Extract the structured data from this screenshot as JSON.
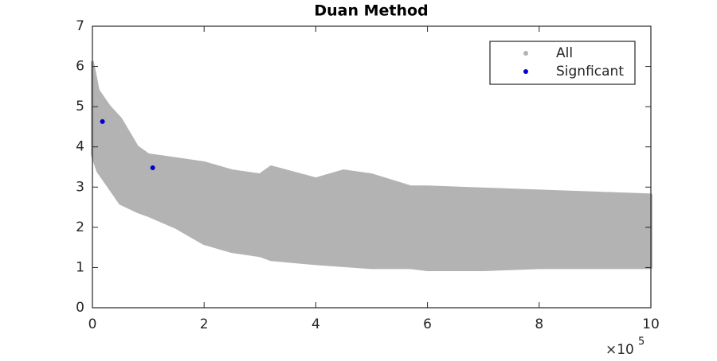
{
  "chart_data": {
    "type": "scatter",
    "title": "Duan Method",
    "xlim": [
      0,
      1000000
    ],
    "ylim": [
      0,
      7
    ],
    "xticks": [
      0,
      {
        "value": 200000,
        "label": "2"
      },
      {
        "value": 400000,
        "label": "4"
      },
      {
        "value": 600000,
        "label": "6"
      },
      {
        "value": 800000,
        "label": "8"
      },
      {
        "value": 1000000,
        "label": "10"
      }
    ],
    "yticks": [
      0,
      1,
      2,
      3,
      4,
      5,
      6,
      7
    ],
    "x_exponent": {
      "base": "×10",
      "power": "5"
    },
    "legend": "upper right",
    "series": [
      {
        "name": "All",
        "color": "#b3b3b3",
        "x": [
          0,
          10000,
          30000,
          50000,
          80000,
          100000,
          150000,
          200000,
          250000,
          300000,
          320000,
          400000,
          450000,
          500000,
          570000,
          600000,
          700000,
          800000,
          900000,
          1000000
        ],
        "upper": [
          6.1,
          5.4,
          5.0,
          4.7,
          4.0,
          3.8,
          3.7,
          3.6,
          3.4,
          3.3,
          3.5,
          3.2,
          3.4,
          3.3,
          3.0,
          3.0,
          2.95,
          2.9,
          2.85,
          2.8
        ],
        "lower": [
          3.8,
          3.4,
          3.0,
          2.6,
          2.4,
          2.3,
          2.0,
          1.6,
          1.4,
          1.3,
          1.2,
          1.1,
          1.05,
          1.0,
          1.0,
          0.95,
          0.95,
          1.0,
          1.0,
          1.0
        ]
      },
      {
        "name": "Signficant",
        "color": "#0000cc",
        "x": [
          18000,
          108000
        ],
        "values": [
          4.63,
          3.48
        ]
      }
    ]
  }
}
